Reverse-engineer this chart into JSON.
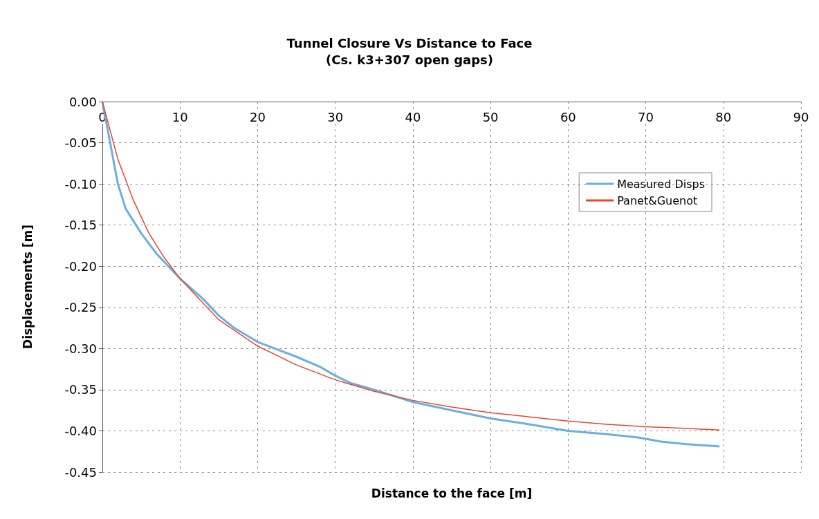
{
  "chart_data": {
    "type": "line",
    "title": "Tunnel Closure Vs Distance to Face",
    "subtitle": "(Cs. k3+307 open gaps)",
    "xlabel": "Distance to the face [m]",
    "ylabel": "Displacements [m]",
    "xlim": [
      0,
      90
    ],
    "xticks": [
      0,
      10,
      20,
      30,
      40,
      50,
      60,
      70,
      80,
      90
    ],
    "ylim": [
      -0.45,
      0
    ],
    "yticks": [
      {
        "value": -0.45,
        "label": "-0.45"
      },
      {
        "value": -0.4,
        "label": "-0.40"
      },
      {
        "value": -0.35,
        "label": "-0.35"
      },
      {
        "value": -0.3,
        "label": "-0.30"
      },
      {
        "value": -0.25,
        "label": "-0.25"
      },
      {
        "value": -0.2,
        "label": "-0.20"
      },
      {
        "value": -0.15,
        "label": "-0.15"
      },
      {
        "value": -0.1,
        "label": "-0.10"
      },
      {
        "value": -0.05,
        "label": "-0.05"
      },
      {
        "value": 0,
        "label": "0.00"
      }
    ],
    "grid": true,
    "legend": "top right",
    "marker": "none",
    "series": [
      {
        "name": "Measured Disps",
        "color": "#6baee0",
        "x": [
          0,
          1,
          2,
          3,
          5,
          7,
          10,
          13,
          15,
          17,
          20,
          25,
          28,
          30,
          32,
          35,
          40,
          45,
          50,
          55,
          60,
          65,
          69,
          72,
          75,
          79.5
        ],
        "values": [
          0,
          -0.05,
          -0.1,
          -0.13,
          -0.16,
          -0.185,
          -0.215,
          -0.24,
          -0.26,
          -0.275,
          -0.292,
          -0.31,
          -0.322,
          -0.333,
          -0.342,
          -0.35,
          -0.365,
          -0.375,
          -0.385,
          -0.392,
          -0.4,
          -0.404,
          -0.408,
          -0.413,
          -0.416,
          -0.419
        ]
      },
      {
        "name": "Panet&Guenot",
        "color": "#e8452c",
        "x": [
          0,
          2,
          4,
          6,
          8,
          10,
          15,
          20,
          25,
          30,
          35,
          40,
          45,
          50,
          55,
          60,
          65,
          70,
          75,
          79.5
        ],
        "values": [
          0,
          -0.07,
          -0.12,
          -0.16,
          -0.19,
          -0.215,
          -0.265,
          -0.297,
          -0.32,
          -0.338,
          -0.352,
          -0.363,
          -0.371,
          -0.378,
          -0.383,
          -0.388,
          -0.392,
          -0.395,
          -0.397,
          -0.399
        ]
      }
    ]
  }
}
